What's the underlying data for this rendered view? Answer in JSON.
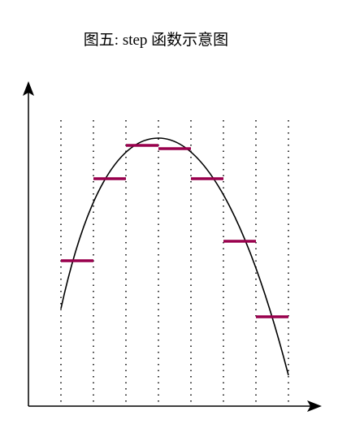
{
  "title": "图五: step 函数示意图"
}
